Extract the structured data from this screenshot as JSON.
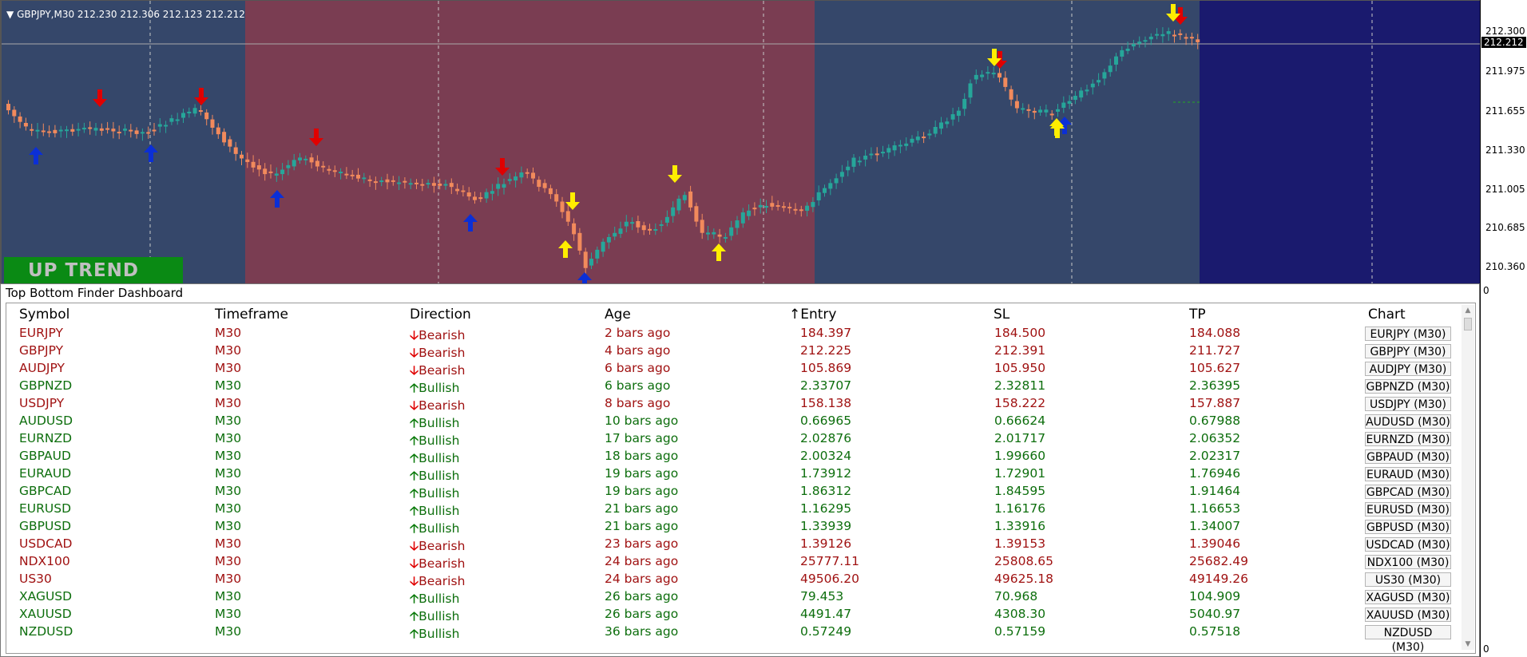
{
  "chart": {
    "header": "GBPJPY,M30  212.230 212.306 212.123 212.212",
    "trend_banner": "UP TREND",
    "current_price": "212.212",
    "price_levels": [
      "212.300",
      "211.975",
      "211.655",
      "211.330",
      "211.005",
      "210.685",
      "210.360"
    ],
    "bottom_label": "0",
    "bottom_label_2": "0",
    "colors": {
      "up_zone": "#35476a",
      "down_zone": "#7a3d52",
      "future_zone": "#1a1a6e",
      "bull_candle": "#26a69a",
      "bear_candle": "#f28a5c",
      "up_arrow": "#0b2fd6",
      "down_arrow": "#e00000",
      "yellow_arrow": "#ffee00"
    }
  },
  "dashboard": {
    "title": "Top Bottom Finder Dashboard",
    "headers": [
      "Symbol",
      "Timeframe",
      "Direction",
      "Age",
      "Entry",
      "SL",
      "TP",
      "Chart"
    ],
    "sort_indicator": "↑",
    "rows": [
      {
        "symbol": "EURJPY",
        "tf": "M30",
        "arrow": "🡣",
        "dir": "Bearish",
        "age": "2 bars ago",
        "entry": "184.397",
        "sl": "184.500",
        "tp": "184.088",
        "chart": "EURJPY (M30)",
        "bull": false
      },
      {
        "symbol": "GBPJPY",
        "tf": "M30",
        "arrow": "🡣",
        "dir": "Bearish",
        "age": "4 bars ago",
        "entry": "212.225",
        "sl": "212.391",
        "tp": "211.727",
        "chart": "GBPJPY (M30)",
        "bull": false
      },
      {
        "symbol": "AUDJPY",
        "tf": "M30",
        "arrow": "🡣",
        "dir": "Bearish",
        "age": "6 bars ago",
        "entry": "105.869",
        "sl": "105.950",
        "tp": "105.627",
        "chart": "AUDJPY (M30)",
        "bull": false
      },
      {
        "symbol": "GBPNZD",
        "tf": "M30",
        "arrow": "🡡",
        "dir": "Bullish",
        "age": "6 bars ago",
        "entry": "2.33707",
        "sl": "2.32811",
        "tp": "2.36395",
        "chart": "GBPNZD (M30)",
        "bull": true
      },
      {
        "symbol": "USDJPY",
        "tf": "M30",
        "arrow": "🡣",
        "dir": "Bearish",
        "age": "8 bars ago",
        "entry": "158.138",
        "sl": "158.222",
        "tp": "157.887",
        "chart": "USDJPY (M30)",
        "bull": false
      },
      {
        "symbol": "AUDUSD",
        "tf": "M30",
        "arrow": "🡡",
        "dir": "Bullish",
        "age": "10 bars ago",
        "entry": "0.66965",
        "sl": "0.66624",
        "tp": "0.67988",
        "chart": "AUDUSD (M30)",
        "bull": true
      },
      {
        "symbol": "EURNZD",
        "tf": "M30",
        "arrow": "🡡",
        "dir": "Bullish",
        "age": "17 bars ago",
        "entry": "2.02876",
        "sl": "2.01717",
        "tp": "2.06352",
        "chart": "EURNZD (M30)",
        "bull": true
      },
      {
        "symbol": "GBPAUD",
        "tf": "M30",
        "arrow": "🡡",
        "dir": "Bullish",
        "age": "18 bars ago",
        "entry": "2.00324",
        "sl": "1.99660",
        "tp": "2.02317",
        "chart": "GBPAUD (M30)",
        "bull": true
      },
      {
        "symbol": "EURAUD",
        "tf": "M30",
        "arrow": "🡡",
        "dir": "Bullish",
        "age": "19 bars ago",
        "entry": "1.73912",
        "sl": "1.72901",
        "tp": "1.76946",
        "chart": "EURAUD (M30)",
        "bull": true
      },
      {
        "symbol": "GBPCAD",
        "tf": "M30",
        "arrow": "🡡",
        "dir": "Bullish",
        "age": "19 bars ago",
        "entry": "1.86312",
        "sl": "1.84595",
        "tp": "1.91464",
        "chart": "GBPCAD (M30)",
        "bull": true
      },
      {
        "symbol": "EURUSD",
        "tf": "M30",
        "arrow": "🡡",
        "dir": "Bullish",
        "age": "21 bars ago",
        "entry": "1.16295",
        "sl": "1.16176",
        "tp": "1.16653",
        "chart": "EURUSD (M30)",
        "bull": true
      },
      {
        "symbol": "GBPUSD",
        "tf": "M30",
        "arrow": "🡡",
        "dir": "Bullish",
        "age": "21 bars ago",
        "entry": "1.33939",
        "sl": "1.33916",
        "tp": "1.34007",
        "chart": "GBPUSD (M30)",
        "bull": true
      },
      {
        "symbol": "USDCAD",
        "tf": "M30",
        "arrow": "🡣",
        "dir": "Bearish",
        "age": "23 bars ago",
        "entry": "1.39126",
        "sl": "1.39153",
        "tp": "1.39046",
        "chart": "USDCAD (M30)",
        "bull": false
      },
      {
        "symbol": "NDX100",
        "tf": "M30",
        "arrow": "🡣",
        "dir": "Bearish",
        "age": "24 bars ago",
        "entry": "25777.11",
        "sl": "25808.65",
        "tp": "25682.49",
        "chart": "NDX100 (M30)",
        "bull": false
      },
      {
        "symbol": "US30",
        "tf": "M30",
        "arrow": "🡣",
        "dir": "Bearish",
        "age": "24 bars ago",
        "entry": "49506.20",
        "sl": "49625.18",
        "tp": "49149.26",
        "chart": "US30 (M30)",
        "bull": false
      },
      {
        "symbol": "XAGUSD",
        "tf": "M30",
        "arrow": "🡡",
        "dir": "Bullish",
        "age": "26 bars ago",
        "entry": "79.453",
        "sl": "70.968",
        "tp": "104.909",
        "chart": "XAGUSD (M30)",
        "bull": true
      },
      {
        "symbol": "XAUUSD",
        "tf": "M30",
        "arrow": "🡡",
        "dir": "Bullish",
        "age": "26 bars ago",
        "entry": "4491.47",
        "sl": "4308.30",
        "tp": "5040.97",
        "chart": "XAUUSD (M30)",
        "bull": true
      },
      {
        "symbol": "NZDUSD",
        "tf": "M30",
        "arrow": "🡡",
        "dir": "Bullish",
        "age": "36 bars ago",
        "entry": "0.57249",
        "sl": "0.57159",
        "tp": "0.57518",
        "chart": "NZDUSD (M30)",
        "bull": true
      }
    ],
    "scroll_up": "▲",
    "scroll_down": "▼"
  }
}
